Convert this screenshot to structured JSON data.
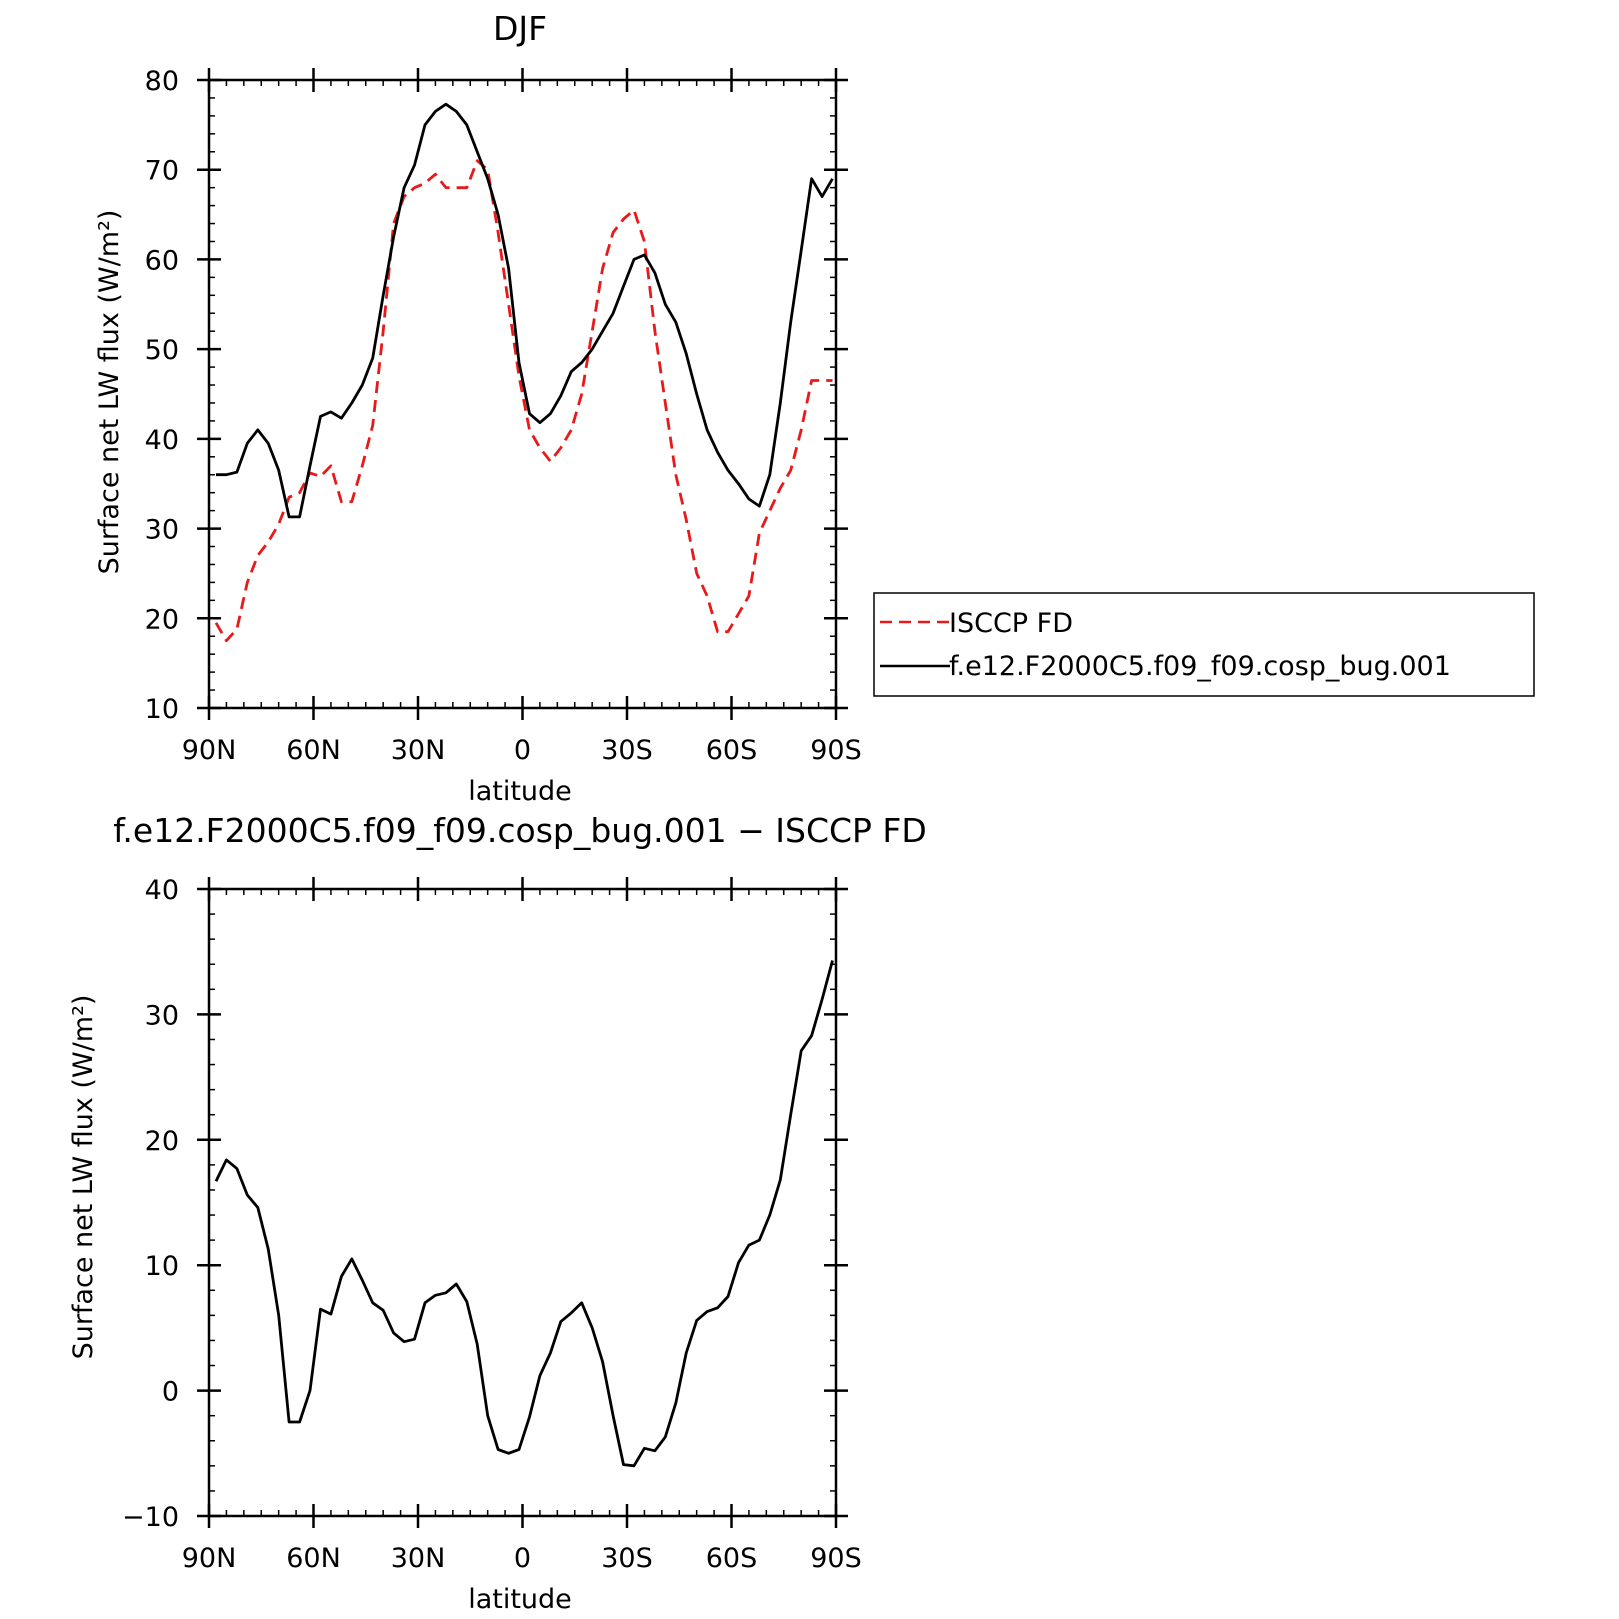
{
  "chart_data": [
    {
      "type": "line",
      "title": "DJF",
      "xlabel": "latitude",
      "ylabel": "Surface net LW flux (W/m²)",
      "xlim": [
        -90,
        90
      ],
      "ylim": [
        10,
        80
      ],
      "xticks": [
        -90,
        -60,
        -30,
        0,
        30,
        60,
        90
      ],
      "xtick_labels": [
        "90N",
        "60N",
        "30N",
        "0",
        "30S",
        "60S",
        "90S"
      ],
      "yticks": [
        10,
        20,
        30,
        40,
        50,
        60,
        70,
        80
      ],
      "grid": false,
      "legend_position": "right",
      "series": [
        {
          "name": "ISCCP FD",
          "color": "#e8191a",
          "dash": "dashed",
          "x": [
            -88,
            -85,
            -82,
            -79,
            -76,
            -73,
            -70,
            -67,
            -64,
            -61,
            -58,
            -55,
            -52,
            -49,
            -46,
            -43,
            -40,
            -37,
            -34,
            -31,
            -28,
            -25,
            -22,
            -19,
            -16,
            -13,
            -10,
            -7,
            -4,
            -1,
            2,
            5,
            8,
            11,
            14,
            17,
            20,
            23,
            26,
            29,
            32,
            35,
            38,
            41,
            44,
            47,
            50,
            53,
            56,
            59,
            62,
            65,
            68,
            71,
            74,
            77,
            80,
            83,
            86,
            89
          ],
          "y": [
            19.5,
            17.5,
            18.8,
            24.0,
            27.0,
            28.5,
            30.5,
            33.5,
            34.0,
            36.2,
            35.8,
            37.0,
            33.0,
            33.0,
            37.0,
            41.5,
            52.0,
            64.0,
            67.0,
            68.0,
            68.5,
            69.5,
            68.0,
            68.0,
            68.0,
            71.0,
            70.0,
            63.0,
            55.0,
            47.0,
            41.0,
            39.0,
            37.5,
            39.0,
            41.0,
            45.0,
            52.0,
            59.0,
            63.0,
            64.5,
            65.5,
            62.0,
            52.0,
            44.0,
            36.0,
            31.0,
            25.0,
            22.5,
            18.5,
            18.5,
            20.5,
            22.5,
            29.5,
            32.0,
            34.5,
            36.5,
            41.0,
            46.5,
            46.5,
            46.5
          ]
        },
        {
          "name": "f.e12.F2000C5.f09_f09.cosp_bug.001",
          "color": "#000000",
          "dash": "solid",
          "x": [
            -88,
            -85,
            -82,
            -79,
            -76,
            -73,
            -70,
            -67,
            -64,
            -61,
            -58,
            -55,
            -52,
            -49,
            -46,
            -43,
            -40,
            -37,
            -34,
            -31,
            -28,
            -25,
            -22,
            -19,
            -16,
            -13,
            -10,
            -7,
            -4,
            -1,
            2,
            5,
            8,
            11,
            14,
            17,
            20,
            23,
            26,
            29,
            32,
            35,
            38,
            41,
            44,
            47,
            50,
            53,
            56,
            59,
            62,
            65,
            68,
            71,
            74,
            77,
            80,
            83,
            86,
            89
          ],
          "y": [
            36.0,
            36.0,
            36.3,
            39.5,
            41.0,
            39.5,
            36.5,
            31.3,
            31.3,
            37.0,
            42.5,
            43.0,
            42.3,
            44.0,
            46.0,
            49.0,
            56.0,
            62.5,
            68.0,
            70.5,
            75.0,
            76.5,
            77.3,
            76.5,
            75.0,
            72.0,
            69.0,
            65.0,
            59.0,
            48.5,
            42.8,
            41.8,
            42.8,
            44.8,
            47.5,
            48.5,
            50.0,
            52.0,
            54.0,
            57.0,
            60.0,
            60.5,
            58.5,
            55.0,
            53.0,
            49.5,
            45.0,
            41.0,
            38.5,
            36.5,
            35.0,
            33.3,
            32.5,
            36.0,
            44.0,
            53.0,
            61.0,
            69.0,
            67.0,
            69.0
          ]
        }
      ]
    },
    {
      "type": "line",
      "title": "f.e12.F2000C5.f09_f09.cosp_bug.001 − ISCCP FD",
      "xlabel": "latitude",
      "ylabel": "Surface net LW flux (W/m²)",
      "xlim": [
        -90,
        90
      ],
      "ylim": [
        -10,
        40
      ],
      "xticks": [
        -90,
        -60,
        -30,
        0,
        30,
        60,
        90
      ],
      "xtick_labels": [
        "90N",
        "60N",
        "30N",
        "0",
        "30S",
        "60S",
        "90S"
      ],
      "yticks": [
        -10,
        0,
        10,
        20,
        30,
        40
      ],
      "grid": false,
      "series": [
        {
          "color": "#000000",
          "dash": "solid",
          "x": [
            -88,
            -85,
            -82,
            -79,
            -76,
            -73,
            -70,
            -67,
            -64,
            -61,
            -58,
            -55,
            -52,
            -49,
            -46,
            -43,
            -40,
            -37,
            -34,
            -31,
            -28,
            -25,
            -22,
            -19,
            -16,
            -13,
            -10,
            -7,
            -4,
            -1,
            2,
            5,
            8,
            11,
            14,
            17,
            20,
            23,
            26,
            29,
            32,
            35,
            38,
            41,
            44,
            47,
            50,
            53,
            56,
            59,
            62,
            65,
            68,
            71,
            74,
            77,
            80,
            83,
            86,
            89
          ],
          "y": [
            16.7,
            18.4,
            17.7,
            15.6,
            14.6,
            11.3,
            6.0,
            -2.5,
            -2.5,
            0.0,
            6.5,
            6.1,
            9.1,
            10.5,
            8.8,
            7.0,
            6.4,
            4.6,
            3.9,
            4.1,
            7.0,
            7.6,
            7.8,
            8.5,
            7.1,
            3.7,
            -2.0,
            -4.7,
            -5.0,
            -4.7,
            -2.1,
            1.2,
            3.0,
            5.5,
            6.2,
            7.0,
            5.0,
            2.3,
            -2.0,
            -5.9,
            -6.0,
            -4.6,
            -4.8,
            -3.7,
            -1.0,
            3.0,
            5.6,
            6.3,
            6.6,
            7.5,
            10.2,
            11.6,
            12.0,
            14.0,
            16.8,
            22.0,
            27.1,
            28.3,
            31.2,
            34.3
          ]
        }
      ]
    }
  ]
}
